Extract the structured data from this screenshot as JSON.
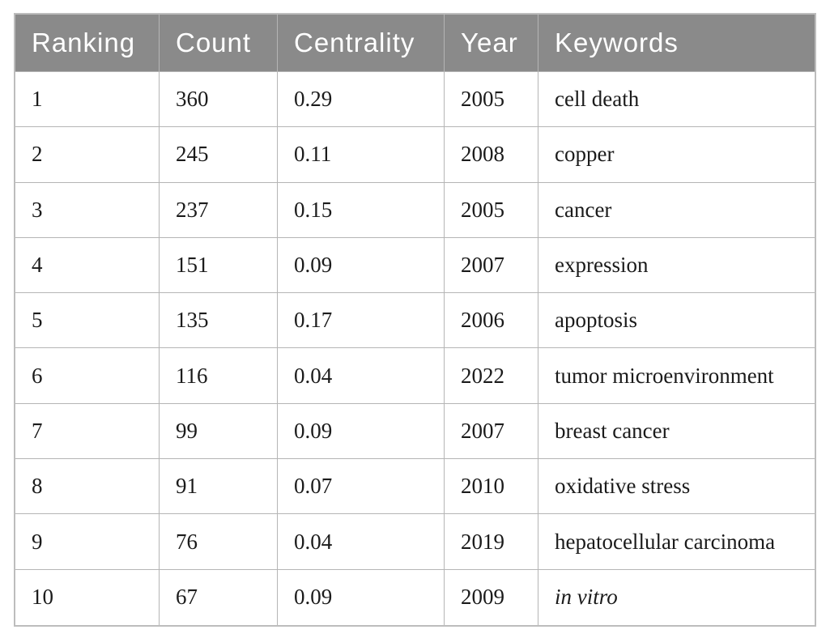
{
  "colors": {
    "header_bg": "#8a8a8a",
    "header_text": "#ffffff",
    "grid_line": "#b5b5b5",
    "body_text": "#1b1b1b",
    "page_bg": "#ffffff"
  },
  "table": {
    "columns": [
      {
        "key": "ranking",
        "label": "Ranking"
      },
      {
        "key": "count",
        "label": "Count"
      },
      {
        "key": "centrality",
        "label": "Centrality"
      },
      {
        "key": "year",
        "label": "Year"
      },
      {
        "key": "keywords",
        "label": "Keywords"
      }
    ],
    "rows": [
      {
        "ranking": "1",
        "count": "360",
        "centrality": "0.29",
        "year": "2005",
        "keywords": "cell death"
      },
      {
        "ranking": "2",
        "count": "245",
        "centrality": "0.11",
        "year": "2008",
        "keywords": "copper"
      },
      {
        "ranking": "3",
        "count": "237",
        "centrality": "0.15",
        "year": "2005",
        "keywords": "cancer"
      },
      {
        "ranking": "4",
        "count": "151",
        "centrality": "0.09",
        "year": "2007",
        "keywords": "expression"
      },
      {
        "ranking": "5",
        "count": "135",
        "centrality": "0.17",
        "year": "2006",
        "keywords": "apoptosis"
      },
      {
        "ranking": "6",
        "count": "116",
        "centrality": "0.04",
        "year": "2022",
        "keywords": "tumor microenvironment"
      },
      {
        "ranking": "7",
        "count": "99",
        "centrality": "0.09",
        "year": "2007",
        "keywords": "breast cancer"
      },
      {
        "ranking": "8",
        "count": "91",
        "centrality": "0.07",
        "year": "2010",
        "keywords": "oxidative stress"
      },
      {
        "ranking": "9",
        "count": "76",
        "centrality": "0.04",
        "year": "2019",
        "keywords": "hepatocellular carcinoma"
      },
      {
        "ranking": "10",
        "count": "67",
        "centrality": "0.09",
        "year": "2009",
        "keywords": "in vitro",
        "keywords_italic": true
      }
    ]
  }
}
